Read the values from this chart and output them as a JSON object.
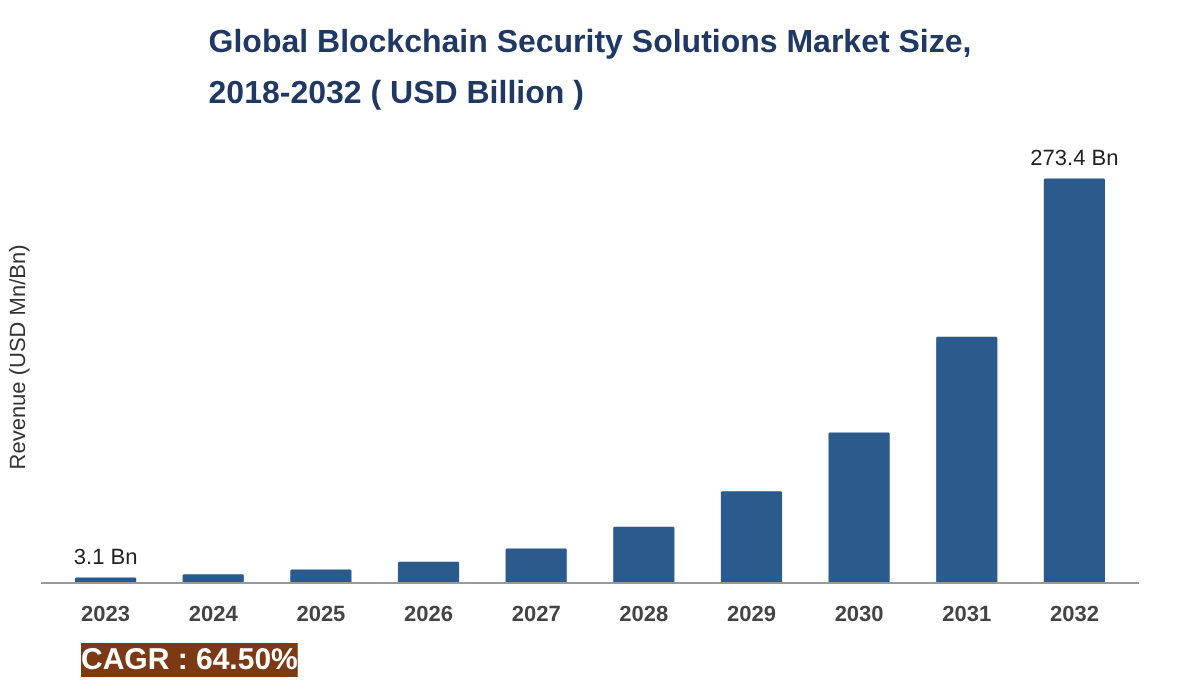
{
  "chart_data": {
    "type": "bar",
    "title": "Global Blockchain Security Solutions Market Size, 2018-2032 ( USD Billion )",
    "ylabel": "Revenue (USD Mn/Bn)",
    "categories": [
      "2023",
      "2024",
      "2025",
      "2026",
      "2027",
      "2028",
      "2029",
      "2030",
      "2031",
      "2032"
    ],
    "values": [
      3.1,
      5.2,
      8.5,
      13.7,
      22.7,
      37.5,
      61.5,
      101.2,
      166.2,
      273.4
    ],
    "value_labels": [
      "3.1 Bn",
      null,
      null,
      null,
      null,
      null,
      null,
      null,
      null,
      "273.4 Bn"
    ],
    "color": "#2a5b8c",
    "grid": false,
    "annotations": [
      "CAGR : 64.50%"
    ]
  }
}
